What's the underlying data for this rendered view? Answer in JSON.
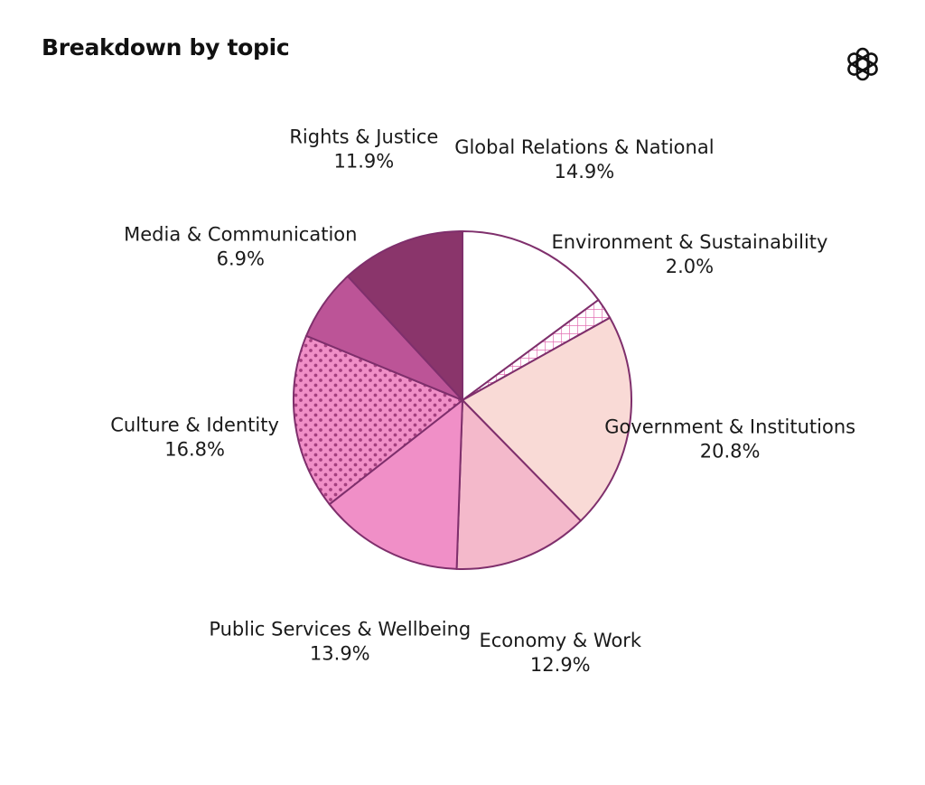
{
  "title": "Breakdown by topic",
  "logo_icon": "openai-logo-icon",
  "chart_data": {
    "type": "pie",
    "title": "Breakdown by topic",
    "start_angle_deg": 0,
    "direction": "clockwise",
    "edge_color": "#7f2f6c",
    "slices": [
      {
        "label": "Global Relations & National",
        "value": 14.9,
        "value_label": "14.9%",
        "color": "#ffffff",
        "pattern": "none"
      },
      {
        "label": "Environment & Sustainability",
        "value": 2.0,
        "value_label": "2.0%",
        "color": "#ffffff",
        "pattern": "crosshatch",
        "pattern_color": "#e36fb3"
      },
      {
        "label": "Government & Institutions",
        "value": 20.8,
        "value_label": "20.8%",
        "color": "#f9dad6",
        "pattern": "none"
      },
      {
        "label": "Economy & Work",
        "value": 12.9,
        "value_label": "12.9%",
        "color": "#f4b9cb",
        "pattern": "none"
      },
      {
        "label": "Public Services & Wellbeing",
        "value": 13.9,
        "value_label": "13.9%",
        "color": "#f08fc7",
        "pattern": "none"
      },
      {
        "label": "Culture & Identity",
        "value": 16.8,
        "value_label": "16.8%",
        "color": "#f08fc7",
        "pattern": "dots",
        "pattern_color": "#a4407f"
      },
      {
        "label": "Media & Communication",
        "value": 6.9,
        "value_label": "6.9%",
        "color": "#bc5497",
        "pattern": "none"
      },
      {
        "label": "Rights & Justice",
        "value": 11.9,
        "value_label": "11.9%",
        "color": "#8a356b",
        "pattern": "none"
      }
    ]
  }
}
